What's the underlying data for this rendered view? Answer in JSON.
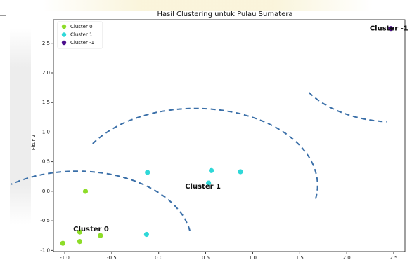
{
  "chart_data": {
    "type": "scatter",
    "title": "Hasil Clustering untuk Pulau Sumatera",
    "xlabel": "",
    "ylabel": "Fitur 2",
    "xlim": [
      -1.12,
      2.62
    ],
    "ylim": [
      -1.02,
      2.9
    ],
    "x_ticks": [
      "-1.0",
      "-0.5",
      "0.0",
      "0.5",
      "1.0",
      "1.5",
      "2.0",
      "2.5"
    ],
    "x_tick_values": [
      -1.0,
      -0.5,
      0.0,
      0.5,
      1.0,
      1.5,
      2.0,
      2.5
    ],
    "y_ticks": [
      "-1.0",
      "-0.5",
      "0.0",
      "0.5",
      "1.0",
      "1.5",
      "2.0",
      "2.5"
    ],
    "y_tick_values": [
      -1.0,
      -0.5,
      0.0,
      0.5,
      1.0,
      1.5,
      2.0,
      2.5
    ],
    "grid": false,
    "legend_position": "top-left",
    "series": [
      {
        "name": "Cluster 0",
        "color": "#8ddc28",
        "points": [
          {
            "x": -0.78,
            "y": 0.0
          },
          {
            "x": -0.84,
            "y": -0.69
          },
          {
            "x": -0.62,
            "y": -0.75
          },
          {
            "x": -0.84,
            "y": -0.85
          },
          {
            "x": -1.02,
            "y": -0.88
          }
        ]
      },
      {
        "name": "Cluster 1",
        "color": "#2fd8d8",
        "points": [
          {
            "x": -0.12,
            "y": 0.32
          },
          {
            "x": 0.56,
            "y": 0.35
          },
          {
            "x": 0.87,
            "y": 0.33
          },
          {
            "x": 0.53,
            "y": 0.14
          },
          {
            "x": -0.13,
            "y": -0.73
          }
        ]
      },
      {
        "name": "Cluster -1",
        "color": "#4b0e8c",
        "points": [
          {
            "x": 2.47,
            "y": 2.75
          }
        ]
      }
    ],
    "annotations": [
      {
        "text": "Cluster 0",
        "x": -0.72,
        "y": -0.64
      },
      {
        "text": "Cluster 1",
        "x": 0.47,
        "y": 0.08
      },
      {
        "text": "Cluster -1",
        "x": 2.45,
        "y": 2.75
      }
    ],
    "boundaries": [
      {
        "cx": -0.87,
        "cy": -0.88,
        "r": 1.22,
        "from_deg": 10,
        "to_deg": 125,
        "color": "#3a6fa8"
      },
      {
        "cx": 0.39,
        "cy": 0.1,
        "r": 1.3,
        "from_deg": -10,
        "to_deg": 148,
        "color": "#3a6fa8"
      },
      {
        "cx": 2.52,
        "cy": 2.27,
        "r": 1.1,
        "from_deg": 213,
        "to_deg": 265,
        "color": "#3a6fa8"
      }
    ]
  }
}
